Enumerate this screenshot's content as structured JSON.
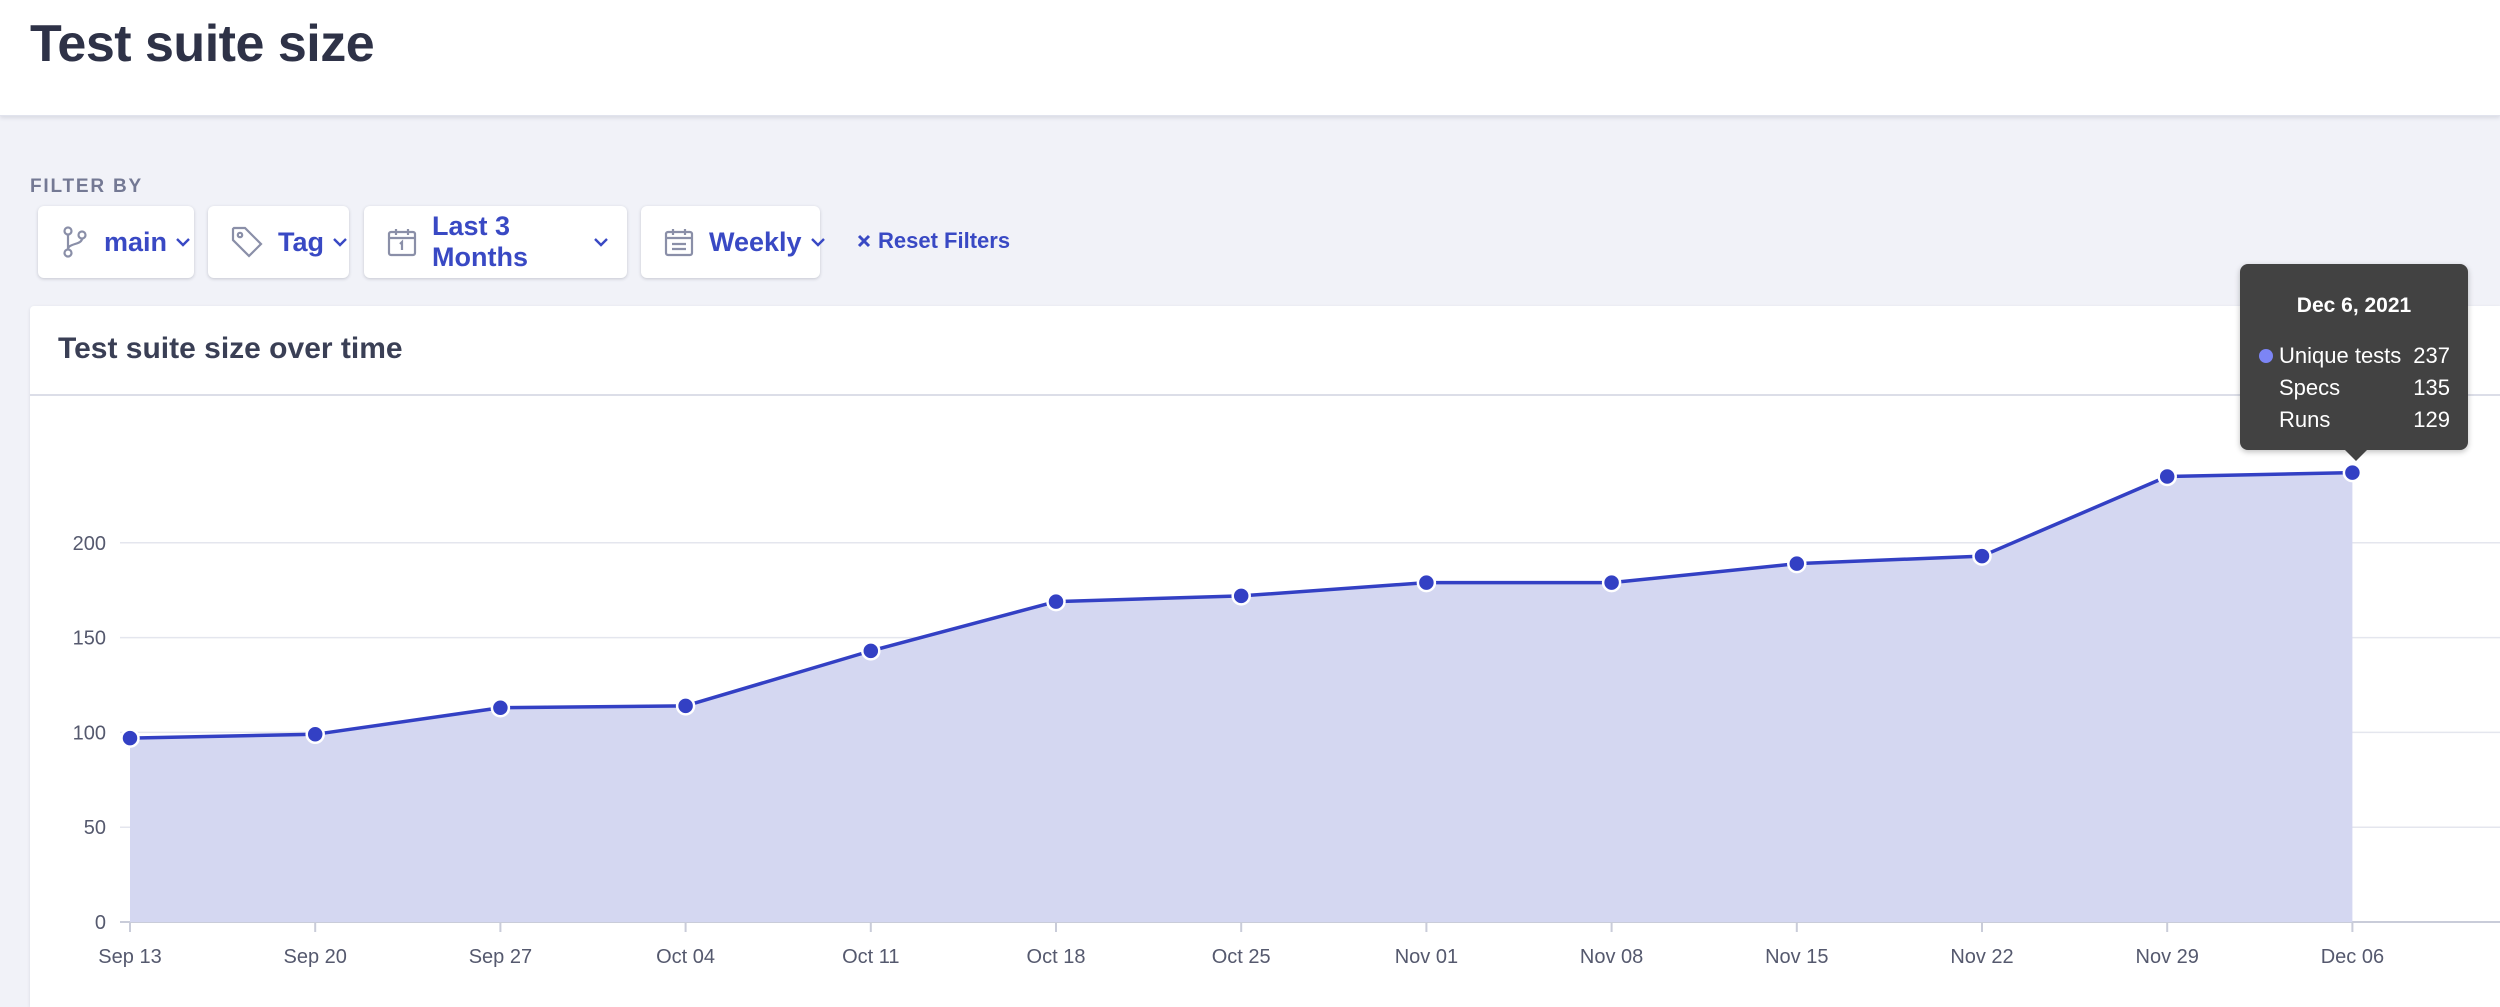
{
  "page": {
    "title": "Test suite size"
  },
  "filters": {
    "label": "FILTER BY",
    "branch": {
      "label": "main",
      "icon": "git-branch-icon"
    },
    "tag": {
      "label": "Tag",
      "icon": "tag-icon"
    },
    "date_range": {
      "label": "Last 3 Months",
      "icon": "calendar-icon"
    },
    "interval": {
      "label": "Weekly",
      "icon": "calendar-list-icon"
    },
    "reset": {
      "label": "Reset Filters",
      "icon": "close-x-icon"
    }
  },
  "chart_card": {
    "title": "Test suite size over time"
  },
  "tooltip": {
    "date": "Dec 6, 2021",
    "rows": [
      {
        "name": "Unique tests",
        "value": "237",
        "dot_color": "#7c85f5"
      },
      {
        "name": "Specs",
        "value": "135"
      },
      {
        "name": "Runs",
        "value": "129"
      }
    ]
  },
  "colors": {
    "accent": "#3949c4",
    "line": "#3340c4",
    "area_fill": "#d4d7f1",
    "tooltip_bg": "#424242"
  },
  "chart_data": {
    "type": "area",
    "categories": [
      "Sep 13",
      "Sep 20",
      "Sep 27",
      "Oct 04",
      "Oct 11",
      "Oct 18",
      "Oct 25",
      "Nov 01",
      "Nov 08",
      "Nov 15",
      "Nov 22",
      "Nov 29",
      "Dec 06"
    ],
    "series": [
      {
        "name": "Unique tests",
        "values": [
          97,
          99,
          113,
          114,
          143,
          169,
          172,
          179,
          179,
          189,
          193,
          235,
          237
        ]
      }
    ],
    "yticks": [
      0,
      50,
      100,
      150,
      200
    ],
    "ylim": [
      0,
      260
    ],
    "grid": true,
    "highlighted_index": 12
  }
}
